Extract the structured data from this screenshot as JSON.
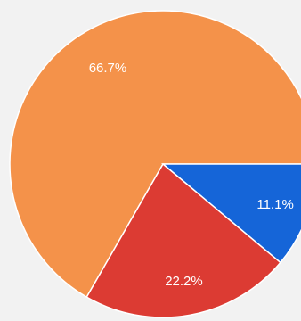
{
  "chart_data": {
    "type": "pie",
    "slices": [
      {
        "label": "66.7%",
        "value": 66.7,
        "color": "#f4924a"
      },
      {
        "label": "11.1%",
        "value": 11.1,
        "color": "#1565d8"
      },
      {
        "label": "22.2%",
        "value": 22.2,
        "color": "#dc3b33"
      }
    ]
  }
}
